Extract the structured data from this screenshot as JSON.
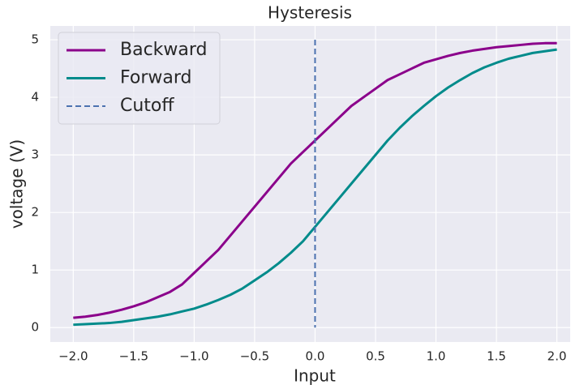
{
  "chart_data": {
    "type": "line",
    "title": "Hysteresis",
    "x_label": "Input",
    "y_label": "voltage (V)",
    "x": [
      -2.0,
      -1.9,
      -1.8,
      -1.7,
      -1.6,
      -1.5,
      -1.4,
      -1.3,
      -1.2,
      -1.1,
      -1.0,
      -0.9,
      -0.8,
      -0.7,
      -0.6,
      -0.5,
      -0.4,
      -0.3,
      -0.2,
      -0.1,
      0.0,
      0.1,
      0.2,
      0.3,
      0.4,
      0.5,
      0.6,
      0.7,
      0.8,
      0.9,
      1.0,
      1.1,
      1.2,
      1.3,
      1.4,
      1.5,
      1.6,
      1.7,
      1.8,
      1.9,
      2.0
    ],
    "series": [
      {
        "name": "Backward",
        "color": "#8b008b",
        "values": [
          0.17,
          0.19,
          0.22,
          0.26,
          0.31,
          0.37,
          0.44,
          0.53,
          0.62,
          0.75,
          0.95,
          1.15,
          1.35,
          1.6,
          1.85,
          2.1,
          2.35,
          2.6,
          2.85,
          3.05,
          3.25,
          3.45,
          3.65,
          3.85,
          4.0,
          4.15,
          4.3,
          4.4,
          4.5,
          4.6,
          4.66,
          4.72,
          4.77,
          4.81,
          4.84,
          4.87,
          4.89,
          4.91,
          4.93,
          4.94,
          4.94
        ]
      },
      {
        "name": "Forward",
        "color": "#008b8b",
        "values": [
          0.05,
          0.06,
          0.07,
          0.08,
          0.1,
          0.13,
          0.16,
          0.19,
          0.23,
          0.28,
          0.33,
          0.4,
          0.48,
          0.57,
          0.68,
          0.82,
          0.96,
          1.12,
          1.3,
          1.5,
          1.75,
          2.0,
          2.25,
          2.5,
          2.75,
          3.0,
          3.25,
          3.47,
          3.67,
          3.85,
          4.02,
          4.17,
          4.3,
          4.42,
          4.52,
          4.6,
          4.67,
          4.72,
          4.77,
          4.8,
          4.83
        ]
      }
    ],
    "cutoff": {
      "name": "Cutoff",
      "x": 0,
      "color": "#4c72b0"
    },
    "xlim": [
      -2.19,
      2.11
    ],
    "xticks": [
      {
        "value": -2,
        "label": "−2.0"
      },
      {
        "value": -1.5,
        "label": "−1.5"
      },
      {
        "value": -1,
        "label": "−1.0"
      },
      {
        "value": -0.5,
        "label": "−0.5"
      },
      {
        "value": 0,
        "label": "0.0"
      },
      {
        "value": 0.5,
        "label": "0.5"
      },
      {
        "value": 1,
        "label": "1.0"
      },
      {
        "value": 1.5,
        "label": "1.5"
      },
      {
        "value": 2,
        "label": "2.0"
      }
    ],
    "ylim": [
      -0.25,
      5.24
    ],
    "yticks": [
      0,
      1,
      2,
      3,
      4,
      5
    ],
    "grid": true,
    "legend": "upper left"
  }
}
